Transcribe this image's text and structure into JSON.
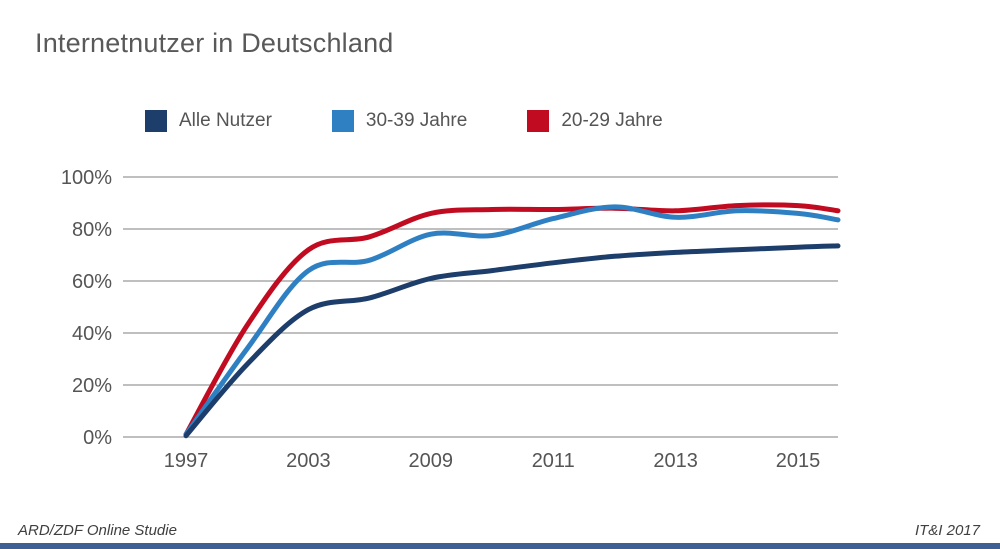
{
  "title": "Internetnutzer in Deutschland",
  "legend": [
    {
      "label": "Alle Nutzer",
      "color": "#1d3d6b"
    },
    {
      "label": "30-39 Jahre",
      "color": "#2f80c3"
    },
    {
      "label": "20-29 Jahre",
      "color": "#c10b20"
    }
  ],
  "chart_data": {
    "type": "line",
    "x": [
      1997,
      2000,
      2003,
      2006,
      2009,
      2010,
      2011,
      2012,
      2013,
      2014,
      2015,
      2016
    ],
    "series": [
      {
        "name": "20-29 Jahre",
        "color": "#c10b20",
        "values": [
          1,
          43,
          72,
          77,
          86,
          87.5,
          87.5,
          88,
          87,
          89,
          89,
          87
        ]
      },
      {
        "name": "30-39 Jahre",
        "color": "#2f80c3",
        "values": [
          1,
          34,
          64,
          68,
          78,
          77.5,
          84,
          88.5,
          84.5,
          87,
          86,
          83.5
        ]
      },
      {
        "name": "Alle Nutzer",
        "color": "#1d3d6b",
        "values": [
          0.5,
          28,
          49,
          53.5,
          61,
          64,
          67,
          69.5,
          71,
          72,
          73,
          73.5
        ]
      }
    ],
    "y_ticks": [
      {
        "label": "0%",
        "value": 0
      },
      {
        "label": "20%",
        "value": 20
      },
      {
        "label": "40%",
        "value": 40
      },
      {
        "label": "60%",
        "value": 60
      },
      {
        "label": "80%",
        "value": 80
      },
      {
        "label": "100%",
        "value": 100
      }
    ],
    "x_tick_labels": [
      "1997",
      "2003",
      "2009",
      "2011",
      "2013",
      "2015"
    ],
    "ylim": [
      0,
      100
    ],
    "grid": "horizontal",
    "gridline_color": "#999999",
    "tick_label_color": "#555555",
    "legend_position": "top"
  },
  "footer": {
    "left": "ARD/ZDF Online Studie",
    "right": "IT&I 2017"
  },
  "accent_bar_color": "#3e6095"
}
